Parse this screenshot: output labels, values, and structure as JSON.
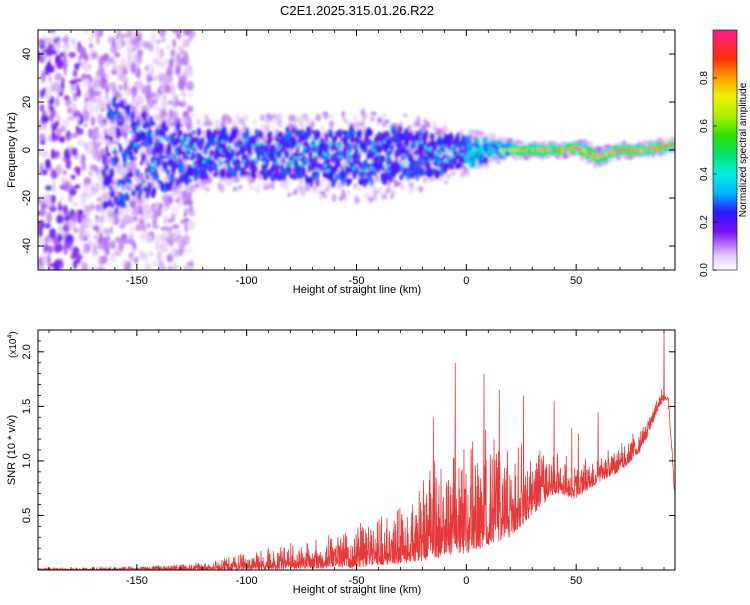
{
  "title": "C2E1.2025.315.01.26.R22",
  "chart_data": [
    {
      "type": "heatmap",
      "title": "C2E1.2025.315.01.26.R22",
      "xlabel": "Height of straight line (km)",
      "ylabel": "Frequency (Hz)",
      "xlim": [
        -195,
        95
      ],
      "ylim": [
        -50,
        50
      ],
      "xticks": [
        -150,
        -100,
        -50,
        0,
        50
      ],
      "yticks": [
        -40,
        -20,
        0,
        20,
        40
      ],
      "colorbar": {
        "label": "Normalized spectral amplitude",
        "range": [
          0,
          1
        ],
        "ticks": [
          "0.0",
          "0.2",
          "0.4",
          "0.6",
          "0.8"
        ]
      },
      "ridge": {
        "x": [
          -195,
          -160,
          -140,
          -120,
          -100,
          -80,
          -60,
          -45,
          -30,
          -10,
          0,
          10,
          20,
          30,
          45,
          50,
          55,
          60,
          70,
          80,
          95
        ],
        "freq": [
          0,
          -2,
          -3,
          -2,
          -1,
          -2,
          -3,
          -3,
          -2,
          -2,
          -1,
          0,
          0,
          0,
          0,
          1,
          -1,
          -3,
          0,
          0,
          2
        ],
        "spread": [
          45,
          30,
          18,
          12,
          12,
          13,
          14,
          15,
          13,
          10,
          7,
          5,
          3,
          2,
          2,
          2,
          3,
          3,
          2,
          2,
          2
        ]
      }
    },
    {
      "type": "line",
      "xlabel": "Height of straight line (km)",
      "ylabel": "SNR (10 * v/v)",
      "scale_label": "(x10",
      "scale_exp": "4",
      "scale_close": ")",
      "xlim": [
        -195,
        95
      ],
      "ylim": [
        0,
        2.2
      ],
      "xticks": [
        -150,
        -100,
        -50,
        0,
        50
      ],
      "yticks": [
        0.5,
        1.0,
        1.5,
        2.0
      ],
      "ytick_labels": [
        "0.5",
        "1.0",
        "1.5",
        "2.0"
      ],
      "series": [
        {
          "name": "SNR",
          "color": "#e8393a",
          "envelope_x": [
            -195,
            -150,
            -130,
            -110,
            -90,
            -70,
            -50,
            -30,
            -15,
            0,
            10,
            20,
            30,
            40,
            50,
            60,
            70,
            80,
            90,
            95
          ],
          "envelope_y": [
            0.02,
            0.03,
            0.06,
            0.12,
            0.2,
            0.28,
            0.42,
            0.65,
            1.0,
            1.2,
            1.25,
            1.2,
            1.15,
            1.1,
            1.0,
            1.05,
            1.2,
            1.3,
            1.7,
            0.9
          ],
          "baseline_x": [
            -195,
            -100,
            -50,
            -20,
            0,
            20,
            40,
            50,
            60,
            70,
            80,
            88,
            92,
            95
          ],
          "baseline_y": [
            0.0,
            0.0,
            0.02,
            0.08,
            0.15,
            0.3,
            0.7,
            0.65,
            0.8,
            0.9,
            1.1,
            1.5,
            1.6,
            0.6
          ],
          "peaks_x": [
            -15,
            -5,
            8,
            15,
            26,
            40,
            48,
            51,
            60,
            90
          ],
          "peaks_y": [
            1.4,
            1.9,
            1.8,
            1.65,
            1.6,
            1.55,
            1.3,
            1.25,
            1.45,
            2.2
          ]
        }
      ]
    }
  ]
}
